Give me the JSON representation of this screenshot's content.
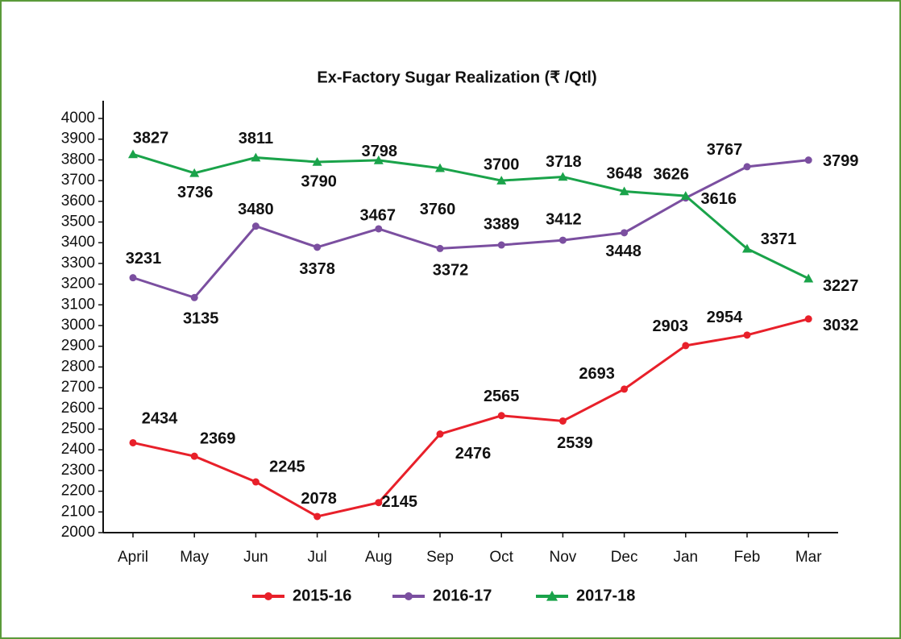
{
  "chart_data": {
    "type": "line",
    "title": "Ex-Factory Sugar Realization (₹ /Qtl)",
    "categories": [
      "April",
      "May",
      "Jun",
      "Jul",
      "Aug",
      "Sep",
      "Oct",
      "Nov",
      "Dec",
      "Jan",
      "Feb",
      "Mar"
    ],
    "series": [
      {
        "name": "2015-16",
        "color": "#e8202a",
        "marker": "circle",
        "values": [
          2434,
          2369,
          2245,
          2078,
          2145,
          2476,
          2565,
          2539,
          2693,
          2903,
          2954,
          3032
        ]
      },
      {
        "name": "2016-17",
        "color": "#7b4fa0",
        "marker": "circle",
        "values": [
          3231,
          3135,
          3480,
          3378,
          3467,
          3372,
          3389,
          3412,
          3448,
          3616,
          3767,
          3799
        ]
      },
      {
        "name": "2017-18",
        "color": "#1aa34a",
        "marker": "triangle",
        "values": [
          3827,
          3736,
          3811,
          3790,
          3798,
          3760,
          3700,
          3718,
          3648,
          3626,
          3371,
          3227
        ]
      }
    ],
    "ylim": [
      2000,
      4000
    ],
    "yticks": [
      2000,
      2100,
      2200,
      2300,
      2400,
      2500,
      2600,
      2700,
      2800,
      2900,
      3000,
      3100,
      3200,
      3300,
      3400,
      3500,
      3600,
      3700,
      3800,
      3900,
      4000
    ],
    "legend": "bottom"
  }
}
